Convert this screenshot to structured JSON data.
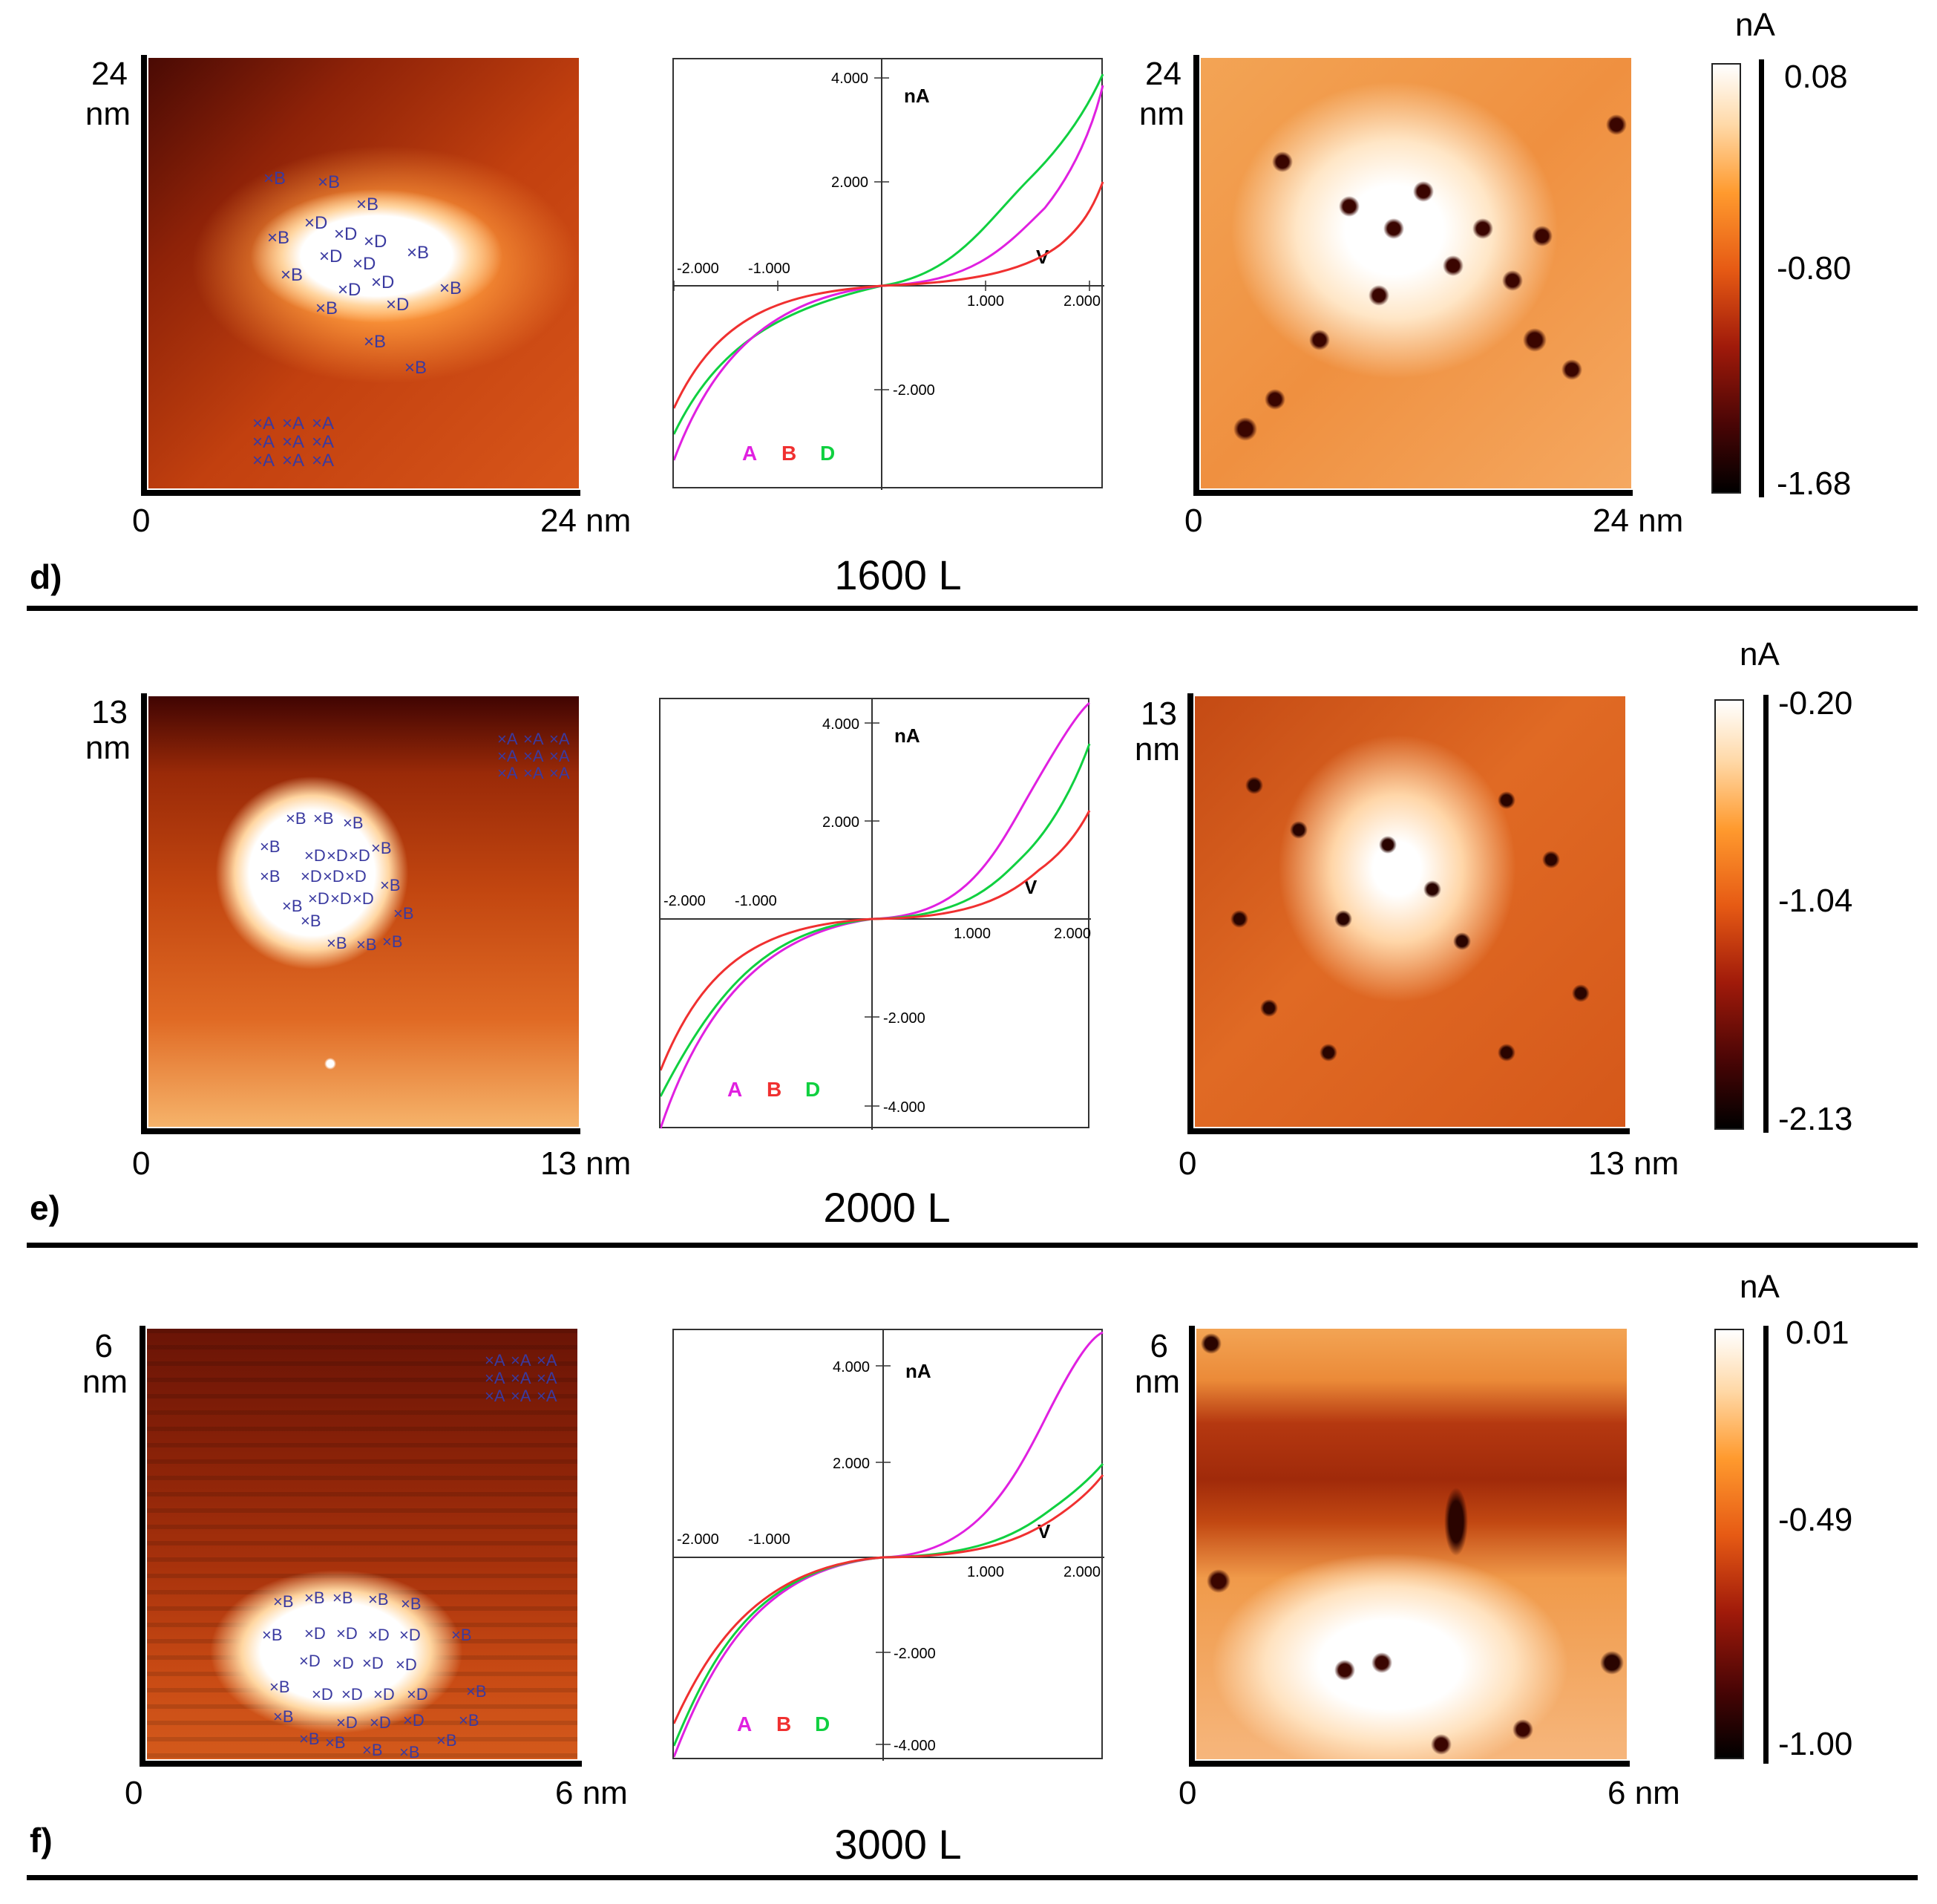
{
  "panels": [
    {
      "panel_label": "d)",
      "caption": "1600 L",
      "topo": {
        "axis_top": "24",
        "axis_top_unit": "nm",
        "axis_origin": "0",
        "axis_end": "24 nm",
        "markers": [
          "B",
          "D",
          "A"
        ]
      },
      "iv": {
        "y_unit": "nA",
        "x_unit": "V",
        "y_ticks": [
          "4.000",
          "2.000",
          "-2.000"
        ],
        "x_ticks": [
          "-2.000",
          "-1.000",
          "1.000",
          "2.000"
        ],
        "legend": [
          "A",
          "B",
          "D"
        ]
      },
      "map": {
        "axis_top": "24",
        "axis_top_unit": "nm",
        "axis_origin": "0",
        "axis_end": "24 nm"
      },
      "colorbar": {
        "unit": "nA",
        "max": "0.08",
        "mid": "-0.80",
        "min": "-1.68"
      }
    },
    {
      "panel_label": "e)",
      "caption": "2000 L",
      "topo": {
        "axis_top": "13",
        "axis_top_unit": "nm",
        "axis_origin": "0",
        "axis_end": "13 nm",
        "markers": [
          "B",
          "D",
          "A"
        ]
      },
      "iv": {
        "y_unit": "nA",
        "x_unit": "V",
        "y_ticks": [
          "4.000",
          "2.000",
          "-2.000",
          "-4.000"
        ],
        "x_ticks": [
          "-2.000",
          "-1.000",
          "1.000",
          "2.000"
        ],
        "legend": [
          "A",
          "B",
          "D"
        ]
      },
      "map": {
        "axis_top": "13",
        "axis_top_unit": "nm",
        "axis_origin": "0",
        "axis_end": "13 nm"
      },
      "colorbar": {
        "unit": "nA",
        "max": "-0.20",
        "mid": "-1.04",
        "min": "-2.13"
      }
    },
    {
      "panel_label": "f)",
      "caption": "3000 L",
      "topo": {
        "axis_top": "6",
        "axis_top_unit": "nm",
        "axis_origin": "0",
        "axis_end": "6 nm",
        "markers": [
          "B",
          "D",
          "A"
        ]
      },
      "iv": {
        "y_unit": "nA",
        "x_unit": "V",
        "y_ticks": [
          "4.000",
          "2.000",
          "-2.000",
          "-4.000"
        ],
        "x_ticks": [
          "-2.000",
          "-1.000",
          "1.000",
          "2.000"
        ],
        "legend": [
          "A",
          "B",
          "D"
        ]
      },
      "map": {
        "axis_top": "6",
        "axis_top_unit": "nm",
        "axis_origin": "0",
        "axis_end": "6 nm"
      },
      "colorbar": {
        "unit": "nA",
        "max": "0.01",
        "mid": "-0.49",
        "min": "-1.00"
      }
    }
  ],
  "colors": {
    "curve_A": "#e020e0",
    "curve_B": "#f03030",
    "curve_D": "#10d040",
    "marker": "#3a3aa0"
  }
}
